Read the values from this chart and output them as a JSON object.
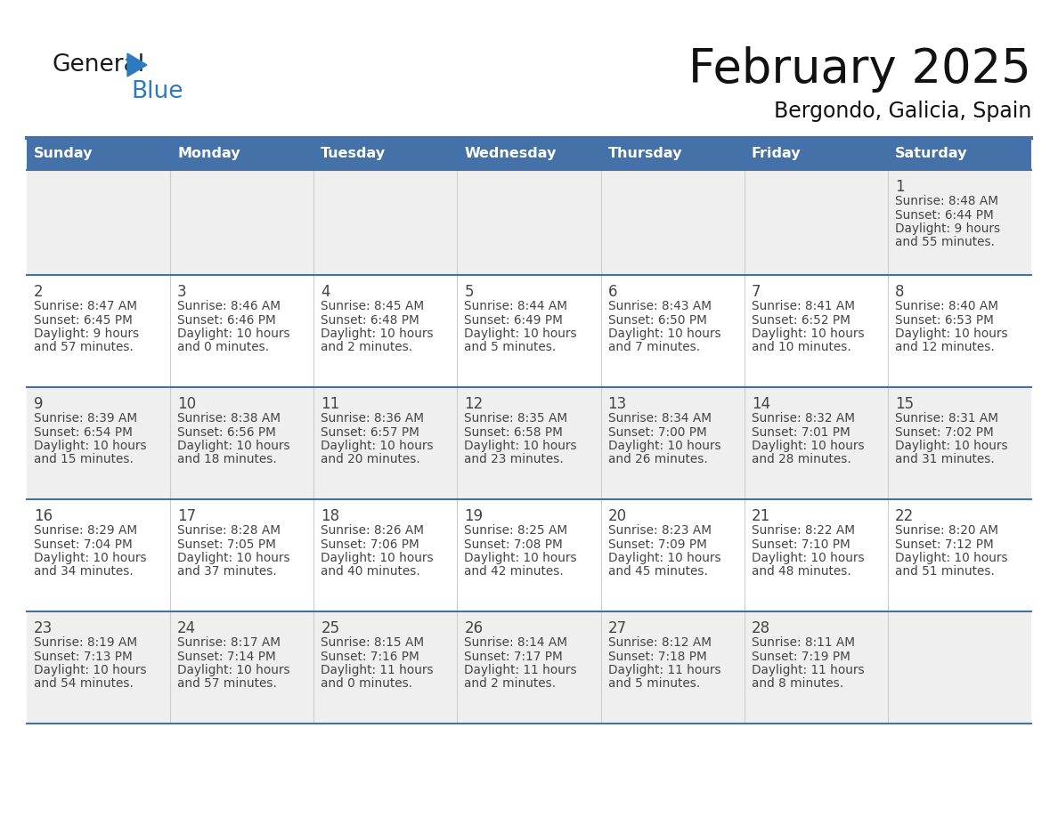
{
  "title": "February 2025",
  "subtitle": "Bergondo, Galicia, Spain",
  "days_of_week": [
    "Sunday",
    "Monday",
    "Tuesday",
    "Wednesday",
    "Thursday",
    "Friday",
    "Saturday"
  ],
  "header_bg": "#4472a8",
  "header_text": "#ffffff",
  "row_bg_odd": "#efefef",
  "row_bg_even": "#ffffff",
  "divider_color": "#4472a8",
  "text_color": "#444444",
  "cell_data": [
    [
      null,
      null,
      null,
      null,
      null,
      null,
      {
        "day": "1",
        "sunrise": "8:48 AM",
        "sunset": "6:44 PM",
        "daylight": "9 hours",
        "daylight2": "and 55 minutes."
      }
    ],
    [
      {
        "day": "2",
        "sunrise": "8:47 AM",
        "sunset": "6:45 PM",
        "daylight": "9 hours",
        "daylight2": "and 57 minutes."
      },
      {
        "day": "3",
        "sunrise": "8:46 AM",
        "sunset": "6:46 PM",
        "daylight": "10 hours",
        "daylight2": "and 0 minutes."
      },
      {
        "day": "4",
        "sunrise": "8:45 AM",
        "sunset": "6:48 PM",
        "daylight": "10 hours",
        "daylight2": "and 2 minutes."
      },
      {
        "day": "5",
        "sunrise": "8:44 AM",
        "sunset": "6:49 PM",
        "daylight": "10 hours",
        "daylight2": "and 5 minutes."
      },
      {
        "day": "6",
        "sunrise": "8:43 AM",
        "sunset": "6:50 PM",
        "daylight": "10 hours",
        "daylight2": "and 7 minutes."
      },
      {
        "day": "7",
        "sunrise": "8:41 AM",
        "sunset": "6:52 PM",
        "daylight": "10 hours",
        "daylight2": "and 10 minutes."
      },
      {
        "day": "8",
        "sunrise": "8:40 AM",
        "sunset": "6:53 PM",
        "daylight": "10 hours",
        "daylight2": "and 12 minutes."
      }
    ],
    [
      {
        "day": "9",
        "sunrise": "8:39 AM",
        "sunset": "6:54 PM",
        "daylight": "10 hours",
        "daylight2": "and 15 minutes."
      },
      {
        "day": "10",
        "sunrise": "8:38 AM",
        "sunset": "6:56 PM",
        "daylight": "10 hours",
        "daylight2": "and 18 minutes."
      },
      {
        "day": "11",
        "sunrise": "8:36 AM",
        "sunset": "6:57 PM",
        "daylight": "10 hours",
        "daylight2": "and 20 minutes."
      },
      {
        "day": "12",
        "sunrise": "8:35 AM",
        "sunset": "6:58 PM",
        "daylight": "10 hours",
        "daylight2": "and 23 minutes."
      },
      {
        "day": "13",
        "sunrise": "8:34 AM",
        "sunset": "7:00 PM",
        "daylight": "10 hours",
        "daylight2": "and 26 minutes."
      },
      {
        "day": "14",
        "sunrise": "8:32 AM",
        "sunset": "7:01 PM",
        "daylight": "10 hours",
        "daylight2": "and 28 minutes."
      },
      {
        "day": "15",
        "sunrise": "8:31 AM",
        "sunset": "7:02 PM",
        "daylight": "10 hours",
        "daylight2": "and 31 minutes."
      }
    ],
    [
      {
        "day": "16",
        "sunrise": "8:29 AM",
        "sunset": "7:04 PM",
        "daylight": "10 hours",
        "daylight2": "and 34 minutes."
      },
      {
        "day": "17",
        "sunrise": "8:28 AM",
        "sunset": "7:05 PM",
        "daylight": "10 hours",
        "daylight2": "and 37 minutes."
      },
      {
        "day": "18",
        "sunrise": "8:26 AM",
        "sunset": "7:06 PM",
        "daylight": "10 hours",
        "daylight2": "and 40 minutes."
      },
      {
        "day": "19",
        "sunrise": "8:25 AM",
        "sunset": "7:08 PM",
        "daylight": "10 hours",
        "daylight2": "and 42 minutes."
      },
      {
        "day": "20",
        "sunrise": "8:23 AM",
        "sunset": "7:09 PM",
        "daylight": "10 hours",
        "daylight2": "and 45 minutes."
      },
      {
        "day": "21",
        "sunrise": "8:22 AM",
        "sunset": "7:10 PM",
        "daylight": "10 hours",
        "daylight2": "and 48 minutes."
      },
      {
        "day": "22",
        "sunrise": "8:20 AM",
        "sunset": "7:12 PM",
        "daylight": "10 hours",
        "daylight2": "and 51 minutes."
      }
    ],
    [
      {
        "day": "23",
        "sunrise": "8:19 AM",
        "sunset": "7:13 PM",
        "daylight": "10 hours",
        "daylight2": "and 54 minutes."
      },
      {
        "day": "24",
        "sunrise": "8:17 AM",
        "sunset": "7:14 PM",
        "daylight": "10 hours",
        "daylight2": "and 57 minutes."
      },
      {
        "day": "25",
        "sunrise": "8:15 AM",
        "sunset": "7:16 PM",
        "daylight": "11 hours",
        "daylight2": "and 0 minutes."
      },
      {
        "day": "26",
        "sunrise": "8:14 AM",
        "sunset": "7:17 PM",
        "daylight": "11 hours",
        "daylight2": "and 2 minutes."
      },
      {
        "day": "27",
        "sunrise": "8:12 AM",
        "sunset": "7:18 PM",
        "daylight": "11 hours",
        "daylight2": "and 5 minutes."
      },
      {
        "day": "28",
        "sunrise": "8:11 AM",
        "sunset": "7:19 PM",
        "daylight": "11 hours",
        "daylight2": "and 8 minutes."
      },
      null
    ]
  ]
}
